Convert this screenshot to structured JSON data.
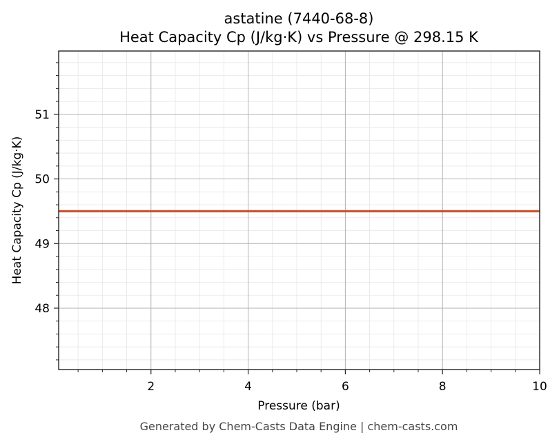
{
  "chart_data": {
    "type": "line",
    "title": "astatine (7440-68-8)",
    "subtitle": "Heat Capacity Cp (J/kg·K) vs Pressure @ 298.15 K",
    "xlabel": "Pressure (bar)",
    "ylabel": "Heat Capacity Cp (J/kg·K)",
    "xlim": [
      0.1,
      10
    ],
    "ylim": [
      47.05,
      51.98
    ],
    "x_ticks": [
      2,
      4,
      6,
      8,
      10
    ],
    "y_ticks": [
      48,
      49,
      50,
      51
    ],
    "x_tick_labels": [
      "2",
      "4",
      "6",
      "8",
      "10"
    ],
    "y_tick_labels": [
      "48",
      "49",
      "50",
      "51"
    ],
    "grid": true,
    "minor_grid": true,
    "series": [
      {
        "color": "#c8522a",
        "x": [
          0.1,
          1,
          2,
          3,
          4,
          5,
          6,
          7,
          8,
          9,
          10
        ],
        "y": [
          49.5,
          49.5,
          49.5,
          49.5,
          49.5,
          49.5,
          49.5,
          49.5,
          49.5,
          49.5,
          49.5
        ]
      }
    ]
  },
  "footer": "Generated by Chem-Casts Data Engine | chem-casts.com"
}
